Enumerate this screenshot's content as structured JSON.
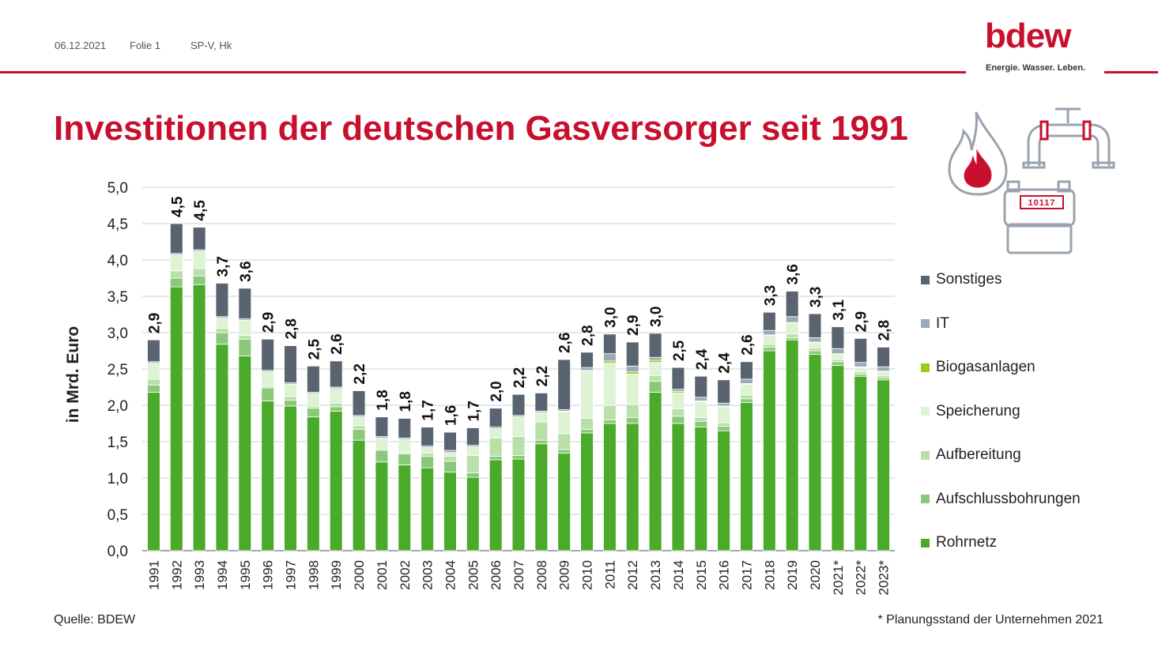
{
  "header": {
    "date": "06.12.2021",
    "slide": "Folie 1",
    "author": "SP-V, Hk"
  },
  "logo": {
    "name": "bdew",
    "tagline": "Energie. Wasser. Leben."
  },
  "title": "Investitionen der deutschen Gasversorger seit 1991",
  "source": "Quelle: BDEW",
  "footnote": "* Planungsstand der Unternehmen 2021",
  "icons": {
    "flame": "flame-icon",
    "pipe": "pipe-icon",
    "meter": "gas-meter-icon",
    "meter_reading": "10117"
  },
  "colors": {
    "accent": "#c8102e"
  },
  "chart_data": {
    "type": "bar",
    "stacked": true,
    "ylabel": "in Mrd. Euro",
    "ylim": [
      0,
      5
    ],
    "yticks": [
      "0,0",
      "0,5",
      "1,0",
      "1,5",
      "2,0",
      "2,5",
      "3,0",
      "3,5",
      "4,0",
      "4,5",
      "5,0"
    ],
    "grid": true,
    "legend_position": "right",
    "categories": [
      "1991",
      "1992",
      "1993",
      "1994",
      "1995",
      "1996",
      "1997",
      "1998",
      "1999",
      "2000",
      "2001",
      "2002",
      "2003",
      "2004",
      "2005",
      "2006",
      "2007",
      "2008",
      "2009",
      "2010",
      "2011",
      "2012",
      "2013",
      "2014",
      "2015",
      "2016",
      "2017",
      "2018",
      "2019",
      "2020",
      "2021*",
      "2022*",
      "2023*"
    ],
    "totals": [
      "2,9",
      "4,5",
      "4,5",
      "3,7",
      "3,6",
      "2,9",
      "2,8",
      "2,5",
      "2,6",
      "2,2",
      "1,8",
      "1,8",
      "1,7",
      "1,6",
      "1,7",
      "2,0",
      "2,2",
      "2,2",
      "2,6",
      "2,8",
      "3,0",
      "2,9",
      "3,0",
      "2,5",
      "2,4",
      "2,4",
      "2,6",
      "3,3",
      "3,6",
      "3,3",
      "3,1",
      "2,9",
      "2,8"
    ],
    "series": [
      {
        "name": "Rohrnetz",
        "color": "#4aaa2a",
        "values": [
          2.18,
          3.63,
          3.66,
          2.84,
          2.68,
          2.06,
          1.99,
          1.84,
          1.92,
          1.52,
          1.22,
          1.18,
          1.14,
          1.08,
          1.01,
          1.25,
          1.26,
          1.47,
          1.34,
          1.62,
          1.75,
          1.75,
          2.18,
          1.75,
          1.7,
          1.65,
          2.04,
          2.75,
          2.9,
          2.7,
          2.55,
          2.4,
          2.35
        ]
      },
      {
        "name": "Aufschlussbohrungen",
        "color": "#8cc87a",
        "values": [
          0.1,
          0.12,
          0.12,
          0.16,
          0.23,
          0.18,
          0.08,
          0.12,
          0.06,
          0.15,
          0.16,
          0.15,
          0.16,
          0.15,
          0.06,
          0.05,
          0.05,
          0.05,
          0.05,
          0.05,
          0.05,
          0.08,
          0.15,
          0.1,
          0.08,
          0.06,
          0.05,
          0.05,
          0.03,
          0.05,
          0.05,
          0.03,
          0.03
        ]
      },
      {
        "name": "Aufbereitung",
        "color": "#b9e0a8",
        "values": [
          0.08,
          0.1,
          0.1,
          0.06,
          0.05,
          0.02,
          0.05,
          0.03,
          0.05,
          0.05,
          0.02,
          0.02,
          0.04,
          0.07,
          0.24,
          0.25,
          0.26,
          0.25,
          0.22,
          0.15,
          0.2,
          0.18,
          0.08,
          0.1,
          0.05,
          0.05,
          0.05,
          0.04,
          0.05,
          0.04,
          0.03,
          0.03,
          0.03
        ]
      },
      {
        "name": "Speicherung",
        "color": "#def2d4",
        "values": [
          0.22,
          0.22,
          0.24,
          0.14,
          0.21,
          0.2,
          0.17,
          0.17,
          0.2,
          0.12,
          0.15,
          0.18,
          0.08,
          0.05,
          0.12,
          0.13,
          0.27,
          0.13,
          0.3,
          0.65,
          0.58,
          0.42,
          0.18,
          0.22,
          0.22,
          0.22,
          0.15,
          0.12,
          0.15,
          0.07,
          0.07,
          0.06,
          0.05
        ]
      },
      {
        "name": "Biogasanlagen",
        "color": "#9ccc1a",
        "values": [
          0,
          0,
          0,
          0,
          0,
          0,
          0,
          0,
          0,
          0,
          0,
          0,
          0,
          0,
          0,
          0,
          0,
          0,
          0.01,
          0.01,
          0.03,
          0.03,
          0.03,
          0.02,
          0.01,
          0.01,
          0.01,
          0.01,
          0.01,
          0.01,
          0.01,
          0.01,
          0.01
        ]
      },
      {
        "name": "IT",
        "color": "#9ca8b4",
        "values": [
          0.02,
          0.02,
          0.02,
          0.02,
          0.02,
          0.02,
          0.02,
          0.02,
          0.02,
          0.02,
          0.02,
          0.02,
          0.02,
          0.03,
          0.02,
          0.02,
          0.02,
          0.02,
          0.02,
          0.04,
          0.1,
          0.08,
          0.04,
          0.03,
          0.05,
          0.04,
          0.06,
          0.06,
          0.08,
          0.06,
          0.07,
          0.06,
          0.06
        ]
      },
      {
        "name": "Sonstiges",
        "color": "#5a6470",
        "values": [
          0.3,
          0.41,
          0.31,
          0.46,
          0.42,
          0.43,
          0.51,
          0.36,
          0.36,
          0.34,
          0.27,
          0.27,
          0.26,
          0.25,
          0.24,
          0.26,
          0.29,
          0.25,
          0.69,
          0.21,
          0.27,
          0.33,
          0.33,
          0.3,
          0.29,
          0.32,
          0.24,
          0.25,
          0.35,
          0.33,
          0.3,
          0.33,
          0.27
        ]
      }
    ]
  }
}
